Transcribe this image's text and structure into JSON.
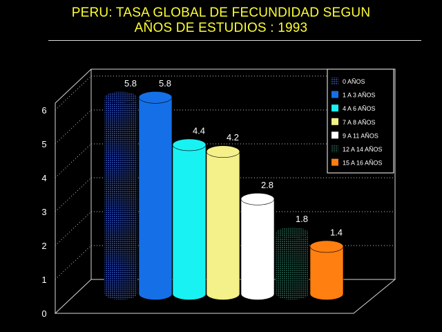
{
  "title_line1": "PERU: TASA GLOBAL DE FECUNDIDAD SEGUN",
  "title_line2": "AÑOS DE ESTUDIOS : 1993",
  "chart_data": {
    "type": "bar",
    "style": "3d-cylinder",
    "title": "PERU: TASA GLOBAL DE FECUNDIDAD SEGUN AÑOS DE ESTUDIOS : 1993",
    "xlabel": "",
    "ylabel": "",
    "ylim": [
      0,
      6
    ],
    "yticks": [
      "0",
      "1",
      "2",
      "3",
      "4",
      "5",
      "6"
    ],
    "grid": true,
    "legend_position": "top-right",
    "series": [
      {
        "name": "0 AÑOS",
        "value": 5.8,
        "label": "5.8",
        "color": "#223a8c",
        "pattern": "dots"
      },
      {
        "name": "1 A 3 AÑOS",
        "value": 5.8,
        "label": "5.8",
        "color": "#1570e8",
        "pattern": "solid"
      },
      {
        "name": "4 A 6 AÑOS",
        "value": 4.4,
        "label": "4.4",
        "color": "#19f2f2",
        "pattern": "solid"
      },
      {
        "name": "7 A 8 AÑOS",
        "value": 4.2,
        "label": "4.2",
        "color": "#f4f08a",
        "pattern": "solid"
      },
      {
        "name": "9 A 11 AÑOS",
        "value": 2.8,
        "label": "2.8",
        "color": "#ffffff",
        "pattern": "solid"
      },
      {
        "name": "12 A 14 AÑOS",
        "value": 1.8,
        "label": "1.8",
        "color": "#1c4a3c",
        "pattern": "dots"
      },
      {
        "name": "15 A 16 AÑOS",
        "value": 1.4,
        "label": "1.4",
        "color": "#ff7f10",
        "pattern": "solid"
      }
    ]
  }
}
